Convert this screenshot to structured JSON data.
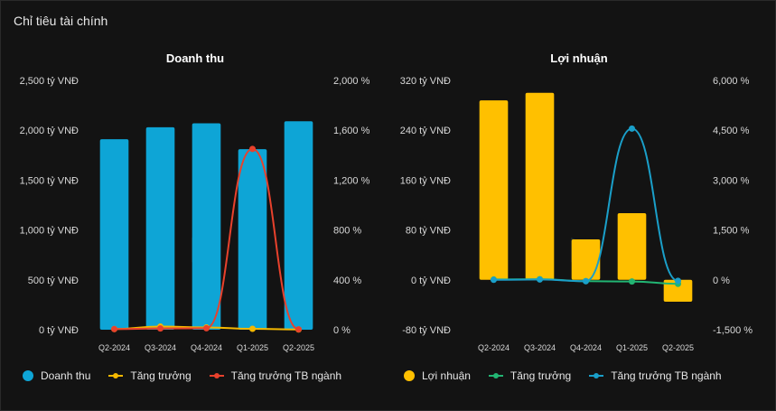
{
  "panel": {
    "title": "Chỉ tiêu tài chính"
  },
  "chart_data": [
    {
      "type": "bar",
      "title": "Doanh thu",
      "categories": [
        "Q2-2024",
        "Q3-2024",
        "Q4-2024",
        "Q1-2025",
        "Q2-2025"
      ],
      "ylim": [
        0,
        2500
      ],
      "y_ticks": [
        "0 tỷ VNĐ",
        "500 tỷ VNĐ",
        "1,000 tỷ VNĐ",
        "1,500 tỷ VNĐ",
        "2,000 tỷ VNĐ",
        "2,500 tỷ VNĐ"
      ],
      "y2lim": [
        0,
        2000
      ],
      "y2_ticks": [
        "0 %",
        "400 %",
        "800 %",
        "1,200 %",
        "1,600 %",
        "2,000 %"
      ],
      "series": [
        {
          "name": "Doanh thu",
          "type": "bar",
          "axis": "left",
          "color": "#0ea5d6",
          "values": [
            1910,
            2030,
            2070,
            1810,
            2090
          ]
        },
        {
          "name": "Tăng trưởng",
          "type": "line",
          "axis": "right",
          "color": "#f5b800",
          "values": [
            5,
            25,
            18,
            7,
            2
          ]
        },
        {
          "name": "Tăng trưởng TB ngành",
          "type": "line",
          "axis": "right",
          "color": "#e8412c",
          "values": [
            5,
            10,
            12,
            1450,
            3
          ]
        }
      ]
    },
    {
      "type": "bar",
      "title": "Lợi nhuận",
      "categories": [
        "Q2-2024",
        "Q3-2024",
        "Q4-2024",
        "Q1-2025",
        "Q2-2025"
      ],
      "ylim": [
        -80,
        320
      ],
      "y_ticks": [
        "-80 tỷ VNĐ",
        "0 tỷ VNĐ",
        "80 tỷ VNĐ",
        "160 tỷ VNĐ",
        "240 tỷ VNĐ",
        "320 tỷ VNĐ"
      ],
      "y2lim": [
        -1500,
        6000
      ],
      "y2_ticks": [
        "-1,500 %",
        "0 %",
        "1,500 %",
        "3,000 %",
        "4,500 %",
        "6,000 %"
      ],
      "series": [
        {
          "name": "Lợi nhuận",
          "type": "bar",
          "axis": "left",
          "color": "#ffc000",
          "values": [
            288,
            300,
            65,
            107,
            -35
          ]
        },
        {
          "name": "Tăng trưởng",
          "type": "line",
          "axis": "right",
          "color": "#22b573",
          "values": [
            10,
            20,
            -40,
            -50,
            -120
          ]
        },
        {
          "name": "Tăng trưởng TB ngành",
          "type": "line",
          "axis": "right",
          "color": "#1a9fc9",
          "values": [
            0,
            10,
            -40,
            4550,
            -30
          ]
        }
      ]
    }
  ]
}
